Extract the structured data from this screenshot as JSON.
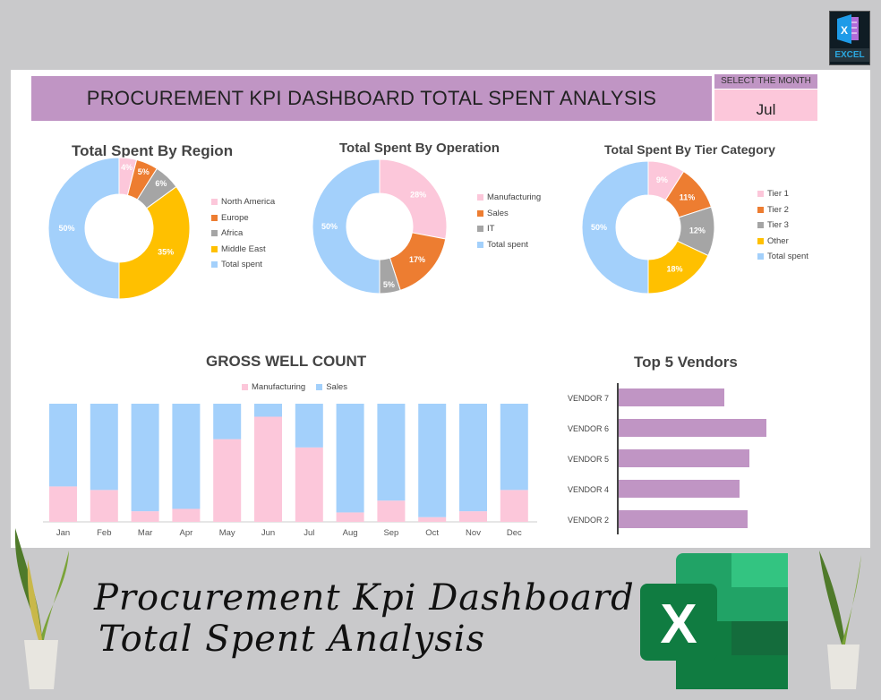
{
  "header": {
    "title": "PROCUREMENT KPI DASHBOARD TOTAL SPENT ANALYSIS",
    "select_month_label": "SELECT THE MONTH",
    "selected_month": "Jul",
    "excel_badge": "EXCEL"
  },
  "colors": {
    "pink": "#fcc7da",
    "orange": "#ed7d31",
    "gray": "#a5a5a5",
    "yellow": "#ffc000",
    "lightblue": "#a3d0fb",
    "purple": "#c095c4"
  },
  "chart_data": [
    {
      "type": "pie",
      "donut": true,
      "title": "Total Spent By Region",
      "categories": [
        "North America",
        "Europe",
        "Africa",
        "Middle East",
        "Total spent"
      ],
      "values": [
        4,
        5,
        6,
        35,
        50
      ],
      "labels": [
        "4%",
        "5%",
        "6%",
        "35%",
        "50%"
      ],
      "colors": [
        "#fcc7da",
        "#ed7d31",
        "#a5a5a5",
        "#ffc000",
        "#a3d0fb"
      ],
      "legend": "right"
    },
    {
      "type": "pie",
      "donut": true,
      "title": "Total Spent By Operation",
      "categories": [
        "Manufacturing",
        "Sales",
        "IT",
        "Total spent"
      ],
      "values": [
        28,
        17,
        5,
        50
      ],
      "labels": [
        "28%",
        "17%",
        "5%",
        "50%"
      ],
      "colors": [
        "#fcc7da",
        "#ed7d31",
        "#a5a5a5",
        "#a3d0fb"
      ],
      "legend": "right"
    },
    {
      "type": "pie",
      "donut": true,
      "title": "Total Spent By Tier Category",
      "categories": [
        "Tier 1",
        "Tier 2",
        "Tier 3",
        "Other",
        "Total spent"
      ],
      "values": [
        9,
        11,
        12,
        18,
        50
      ],
      "labels": [
        "9%",
        "11%",
        "12%",
        "18%",
        "50%"
      ],
      "colors": [
        "#fcc7da",
        "#ed7d31",
        "#a5a5a5",
        "#ffc000",
        "#a3d0fb"
      ],
      "legend": "right"
    },
    {
      "type": "bar",
      "stacked": "100%",
      "title": "GROSS WELL COUNT",
      "categories": [
        "Jan",
        "Feb",
        "Mar",
        "Apr",
        "May",
        "Jun",
        "Jul",
        "Aug",
        "Sep",
        "Oct",
        "Nov",
        "Dec"
      ],
      "series": [
        {
          "name": "Manufacturing",
          "color": "#fcc7da",
          "values": [
            30,
            27,
            9,
            11,
            70,
            89,
            63,
            8,
            18,
            4,
            9,
            27
          ]
        },
        {
          "name": "Sales",
          "color": "#a3d0fb",
          "values": [
            70,
            73,
            91,
            89,
            30,
            11,
            37,
            92,
            82,
            96,
            91,
            73
          ]
        }
      ],
      "legend": "top"
    },
    {
      "type": "bar",
      "orientation": "horizontal",
      "title": "Top 5 Vendors",
      "categories": [
        "VENDOR 7",
        "VENDOR 6",
        "VENDOR 5",
        "VENDOR 4",
        "VENDOR 2"
      ],
      "values": [
        118,
        165,
        146,
        135,
        144
      ],
      "color": "#c095c4"
    }
  ],
  "footer": {
    "line1": "Procurement Kpi Dashboard",
    "line2": "Total Spent Analysis"
  }
}
